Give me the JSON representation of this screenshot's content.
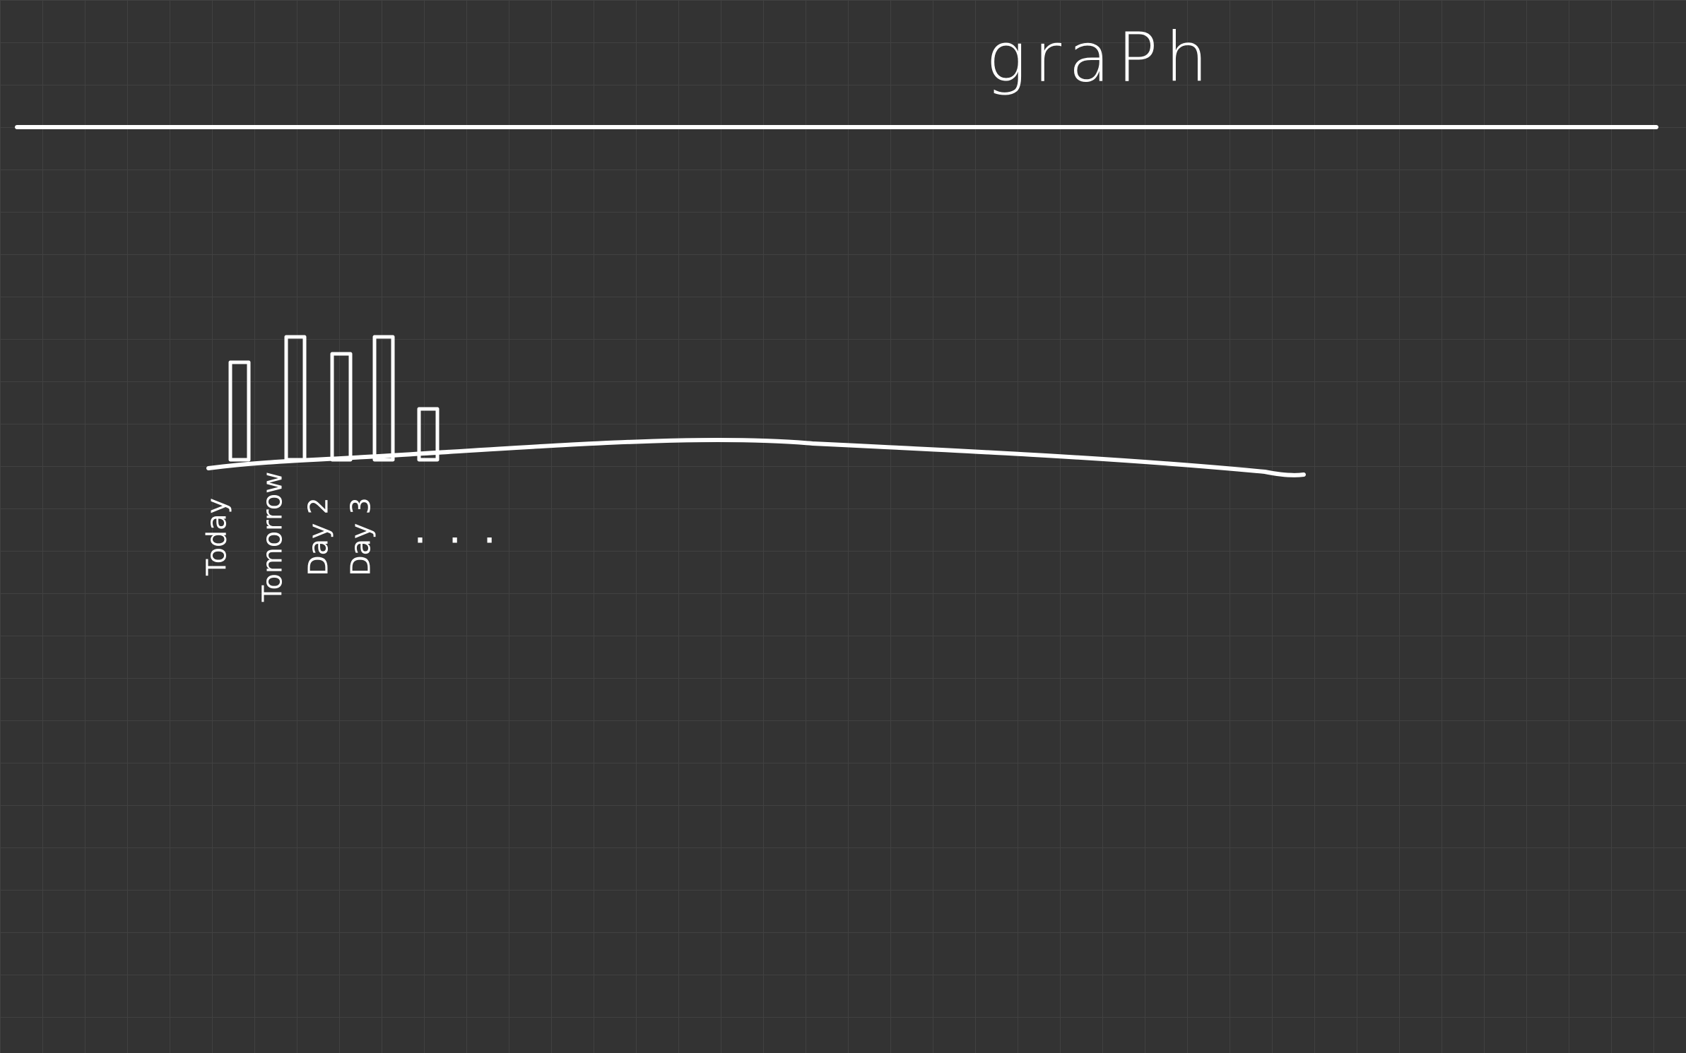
{
  "chart_data": {
    "type": "bar",
    "title": "graPh",
    "categories": [
      "Today",
      "Tomorrow",
      "Day 2",
      "Day 3",
      null
    ],
    "values": [
      2.3,
      2.9,
      2.5,
      2.9,
      1.2
    ],
    "color": "#ffffff",
    "annotation": "..."
  }
}
